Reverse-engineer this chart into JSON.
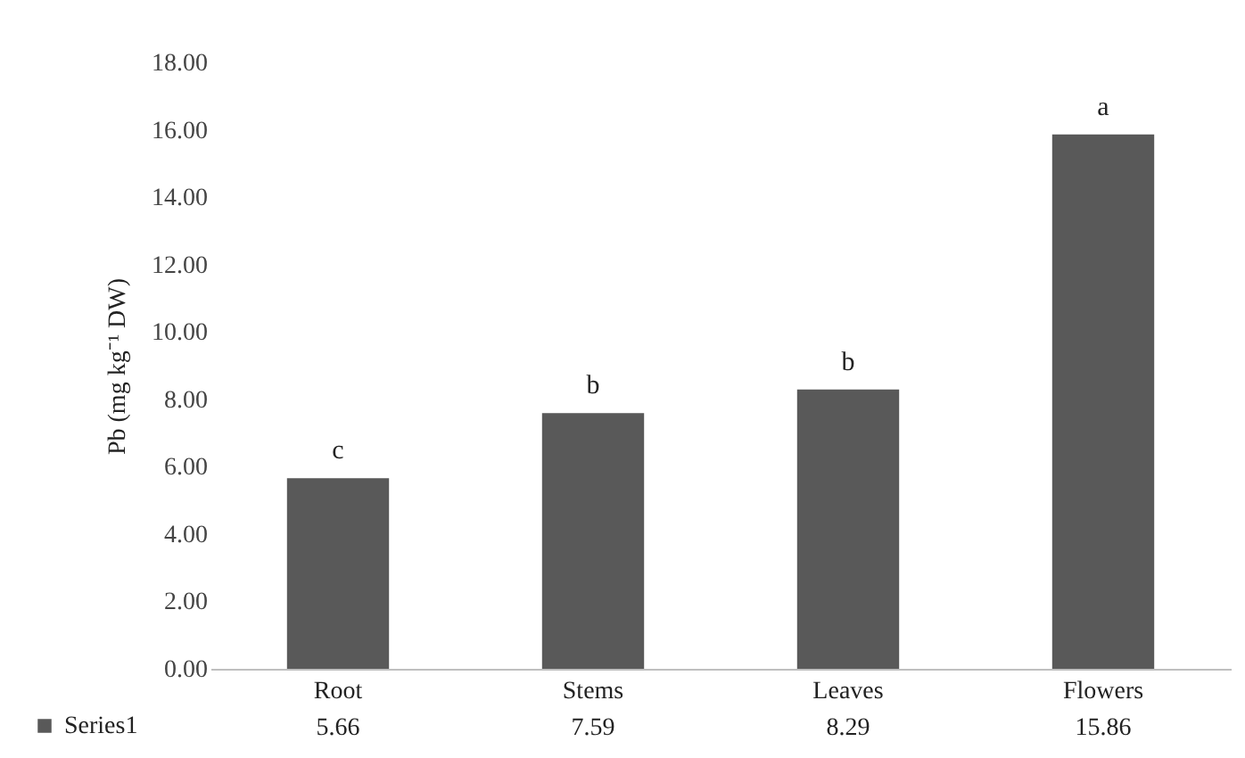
{
  "chart_data": {
    "type": "bar",
    "ylabel": "Pb (mg kg⁻¹ DW)",
    "categories": [
      "Root",
      "Stems",
      "Leaves",
      "Flowers"
    ],
    "series": [
      {
        "name": "Series1",
        "color": "#595959",
        "values": [
          5.66,
          7.59,
          8.29,
          15.86
        ]
      }
    ],
    "ylim": [
      0,
      18
    ],
    "yticks": [
      {
        "value": 0,
        "label": "0.00"
      },
      {
        "value": 2,
        "label": "2.00"
      },
      {
        "value": 4,
        "label": "4.00"
      },
      {
        "value": 6,
        "label": "6.00"
      },
      {
        "value": 8,
        "label": "8.00"
      },
      {
        "value": 10,
        "label": "10.00"
      },
      {
        "value": 12,
        "label": "12.00"
      },
      {
        "value": 14,
        "label": "14.00"
      },
      {
        "value": 16,
        "label": "16.00"
      },
      {
        "value": 18,
        "label": "18.00"
      }
    ],
    "data_labels": true,
    "legend": "bottom left",
    "grid": false,
    "annotations": [
      {
        "text": "c",
        "x": "Root",
        "y": 5.66
      },
      {
        "text": "b",
        "x": "Stems",
        "y": 7.59
      },
      {
        "text": "b",
        "x": "Leaves",
        "y": 8.29
      },
      {
        "text": "a",
        "x": "Flowers",
        "y": 15.86
      }
    ]
  }
}
